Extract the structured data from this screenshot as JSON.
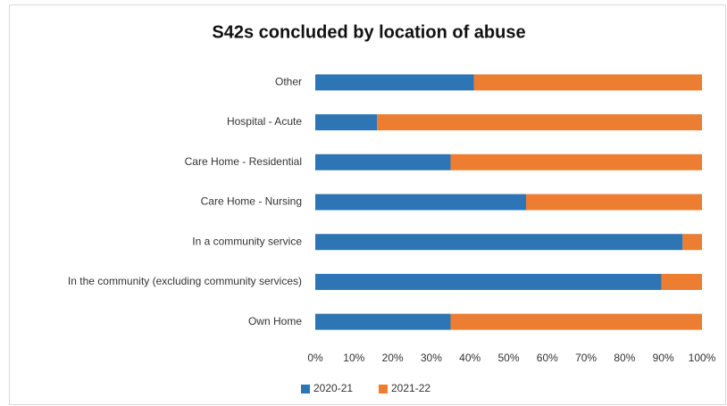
{
  "chart_data": {
    "type": "stacked_barh",
    "title": "S42s concluded by location of abuse",
    "categories": [
      "Other",
      "Hospital - Acute",
      "Care Home - Residential",
      "Care Home - Nursing",
      "In a community service",
      "In the community (excluding community services)",
      "Own Home"
    ],
    "series": [
      {
        "name": "2020-21",
        "color": "#2e75b6",
        "values": [
          41,
          16,
          35,
          54.5,
          95,
          89.5,
          35
        ]
      },
      {
        "name": "2021-22",
        "color": "#ed7d31",
        "values": [
          59,
          84,
          65,
          45.5,
          5,
          10.5,
          65
        ]
      }
    ],
    "xlim": [
      0,
      100
    ],
    "xticks": [
      {
        "value": 0,
        "label": "0%"
      },
      {
        "value": 10,
        "label": "10%"
      },
      {
        "value": 20,
        "label": "20%"
      },
      {
        "value": 30,
        "label": "30%"
      },
      {
        "value": 40,
        "label": "40%"
      },
      {
        "value": 50,
        "label": "50%"
      },
      {
        "value": 60,
        "label": "60%"
      },
      {
        "value": 70,
        "label": "70%"
      },
      {
        "value": 80,
        "label": "80%"
      },
      {
        "value": 90,
        "label": "90%"
      },
      {
        "value": 100,
        "label": "100%"
      }
    ],
    "grid": false,
    "legend": "bottom"
  }
}
